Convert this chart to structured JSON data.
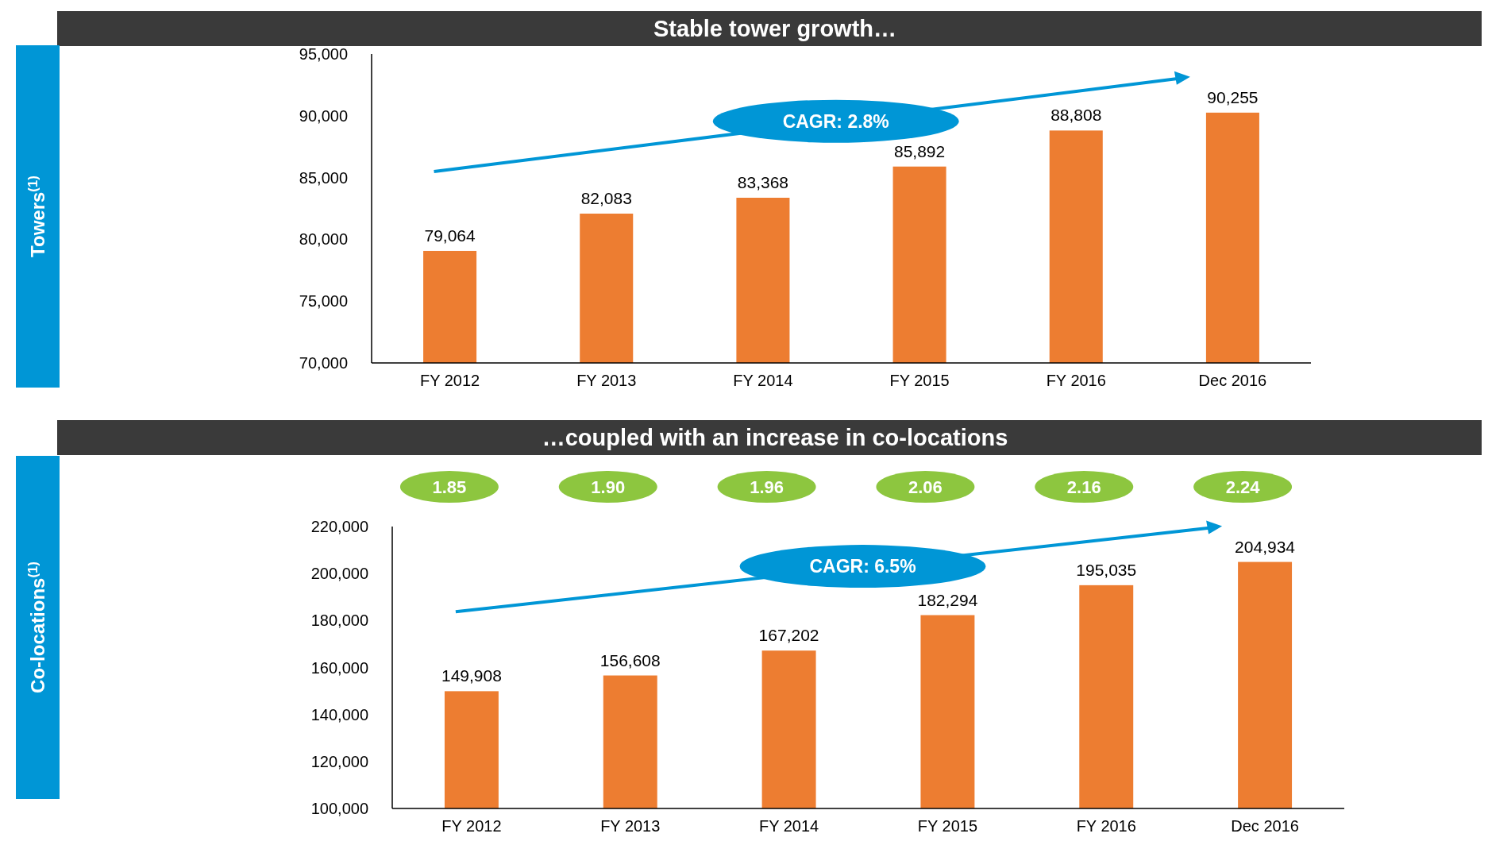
{
  "chart_data": [
    {
      "type": "bar",
      "title": "Stable tower growth…",
      "ylabel": "Towers$^{(1)}$",
      "categories": [
        "FY 2012",
        "FY 2013",
        "FY 2014",
        "FY 2015",
        "FY 2016",
        "Dec 2016"
      ],
      "values": [
        79064,
        82083,
        83368,
        85892,
        88808,
        90255
      ],
      "value_labels": [
        "79,064",
        "82,083",
        "83,368",
        "85,892",
        "88,808",
        "90,255"
      ],
      "color": "#ed7d31",
      "ylim": [
        70000,
        95000
      ],
      "yticks": [
        {
          "value": 70000,
          "label": "70,000"
        },
        {
          "value": 75000,
          "label": "75,000"
        },
        {
          "value": 80000,
          "label": "80,000"
        },
        {
          "value": 85000,
          "label": "85,000"
        },
        {
          "value": 90000,
          "label": "90,000"
        },
        {
          "value": 95000,
          "label": "95,000"
        }
      ],
      "annotations": [
        "CAGR: 2.8%"
      ]
    },
    {
      "type": "bar",
      "title": "…coupled with an increase in co-locations",
      "ylabel": "Co-locations$^{(1)}$",
      "categories": [
        "FY 2012",
        "FY 2013",
        "FY 2014",
        "FY 2015",
        "FY 2016",
        "Dec 2016"
      ],
      "values": [
        149908,
        156608,
        167202,
        182294,
        195035,
        204934
      ],
      "value_labels": [
        "149,908",
        "156,608",
        "167,202",
        "182,294",
        "195,035",
        "204,934"
      ],
      "color": "#ed7d31",
      "ylim": [
        100000,
        220000
      ],
      "yticks": [
        {
          "value": 100000,
          "label": "100,000"
        },
        {
          "value": 120000,
          "label": "120,000"
        },
        {
          "value": 140000,
          "label": "140,000"
        },
        {
          "value": 160000,
          "label": "160,000"
        },
        {
          "value": 180000,
          "label": "180,000"
        },
        {
          "value": 200000,
          "label": "200,000"
        },
        {
          "value": 220000,
          "label": "220,000"
        }
      ],
      "annotations": [
        "CAGR: 6.5%",
        "1.85",
        "1.90",
        "1.96",
        "2.06",
        "2.16",
        "2.24"
      ]
    }
  ]
}
